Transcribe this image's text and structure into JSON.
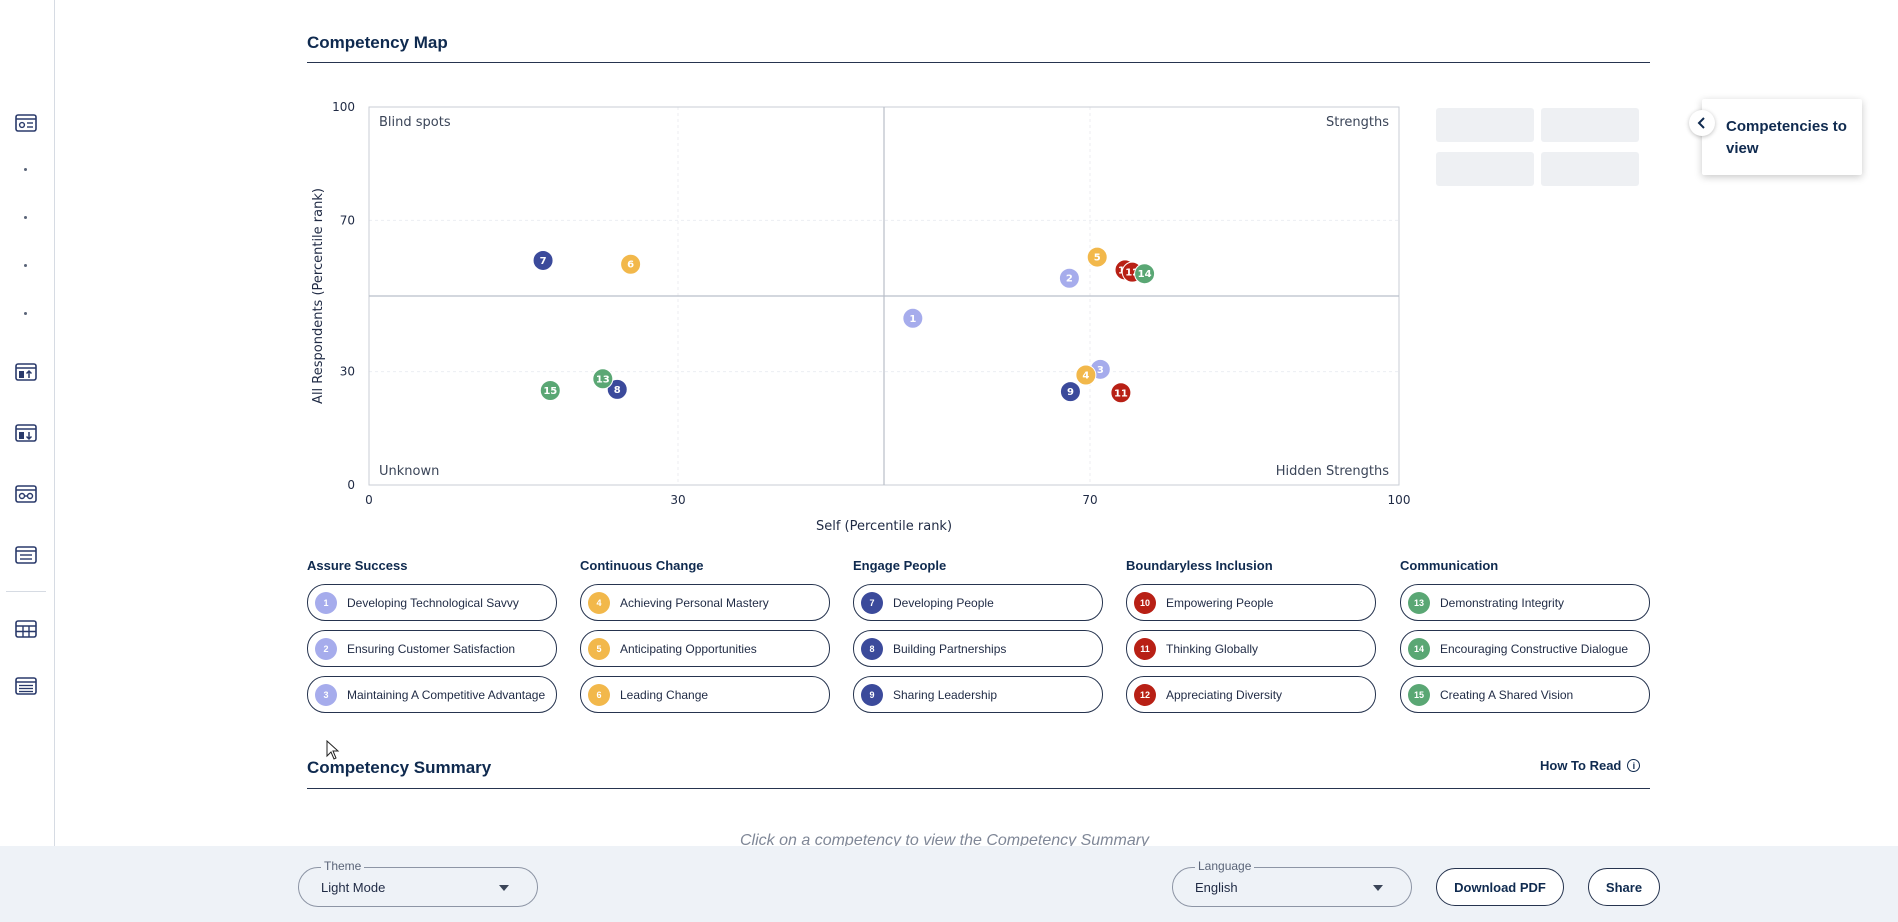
{
  "competency_map": {
    "title": "Competency Map"
  },
  "chart_data": {
    "type": "scatter",
    "xlabel": "Self (Percentile rank)",
    "ylabel": "All Respondents (Percentile rank)",
    "xlim": [
      0,
      100
    ],
    "ylim": [
      0,
      100
    ],
    "x_ticks": [
      0,
      30,
      70,
      100
    ],
    "y_ticks": [
      0,
      30,
      70,
      100
    ],
    "divider": {
      "x": 50,
      "y": 50
    },
    "quadrants": {
      "top_left": "Blind spots",
      "top_right": "Strengths",
      "bottom_left": "Unknown",
      "bottom_right": "Hidden Strengths"
    },
    "points": [
      {
        "id": "1",
        "x": 52.8,
        "y": 44.1,
        "color": "#a6acec"
      },
      {
        "id": "2",
        "x": 68.0,
        "y": 54.7,
        "color": "#a6acec"
      },
      {
        "id": "3",
        "x": 71.0,
        "y": 30.6,
        "color": "#a6acec"
      },
      {
        "id": "4",
        "x": 69.6,
        "y": 29.1,
        "color": "#f2b84b"
      },
      {
        "id": "5",
        "x": 70.7,
        "y": 60.3,
        "color": "#f2b84b"
      },
      {
        "id": "6",
        "x": 25.4,
        "y": 58.4,
        "color": "#f2b84b"
      },
      {
        "id": "7",
        "x": 16.9,
        "y": 59.4,
        "color": "#3b4a9b"
      },
      {
        "id": "8",
        "x": 24.1,
        "y": 25.3,
        "color": "#3b4a9b"
      },
      {
        "id": "9",
        "x": 68.1,
        "y": 24.7,
        "color": "#3b4a9b"
      },
      {
        "id": "10",
        "x": 73.4,
        "y": 56.9,
        "color": "#b82015"
      },
      {
        "id": "11",
        "x": 73.0,
        "y": 24.4,
        "color": "#b82015"
      },
      {
        "id": "12",
        "x": 74.1,
        "y": 56.3,
        "color": "#b82015"
      },
      {
        "id": "13",
        "x": 22.7,
        "y": 28.1,
        "color": "#5aa774"
      },
      {
        "id": "14",
        "x": 75.3,
        "y": 55.9,
        "color": "#5aa774"
      },
      {
        "id": "15",
        "x": 17.6,
        "y": 25.0,
        "color": "#5aa774"
      }
    ]
  },
  "competency_panel": {
    "title": "Competencies to view"
  },
  "legend_groups": [
    {
      "title": "Assure Success",
      "color": "#a6acec",
      "items": [
        {
          "num": "1",
          "label": "Developing Technological Savvy"
        },
        {
          "num": "2",
          "label": "Ensuring Customer Satisfaction"
        },
        {
          "num": "3",
          "label": "Maintaining A Competitive Advantage"
        }
      ]
    },
    {
      "title": "Continuous Change",
      "color": "#f2b84b",
      "items": [
        {
          "num": "4",
          "label": "Achieving Personal Mastery"
        },
        {
          "num": "5",
          "label": "Anticipating Opportunities"
        },
        {
          "num": "6",
          "label": "Leading Change"
        }
      ]
    },
    {
      "title": "Engage People",
      "color": "#3b4a9b",
      "items": [
        {
          "num": "7",
          "label": "Developing People"
        },
        {
          "num": "8",
          "label": "Building Partnerships"
        },
        {
          "num": "9",
          "label": "Sharing Leadership"
        }
      ]
    },
    {
      "title": "Boundaryless Inclusion",
      "color": "#b82015",
      "items": [
        {
          "num": "10",
          "label": "Empowering People"
        },
        {
          "num": "11",
          "label": "Thinking Globally"
        },
        {
          "num": "12",
          "label": "Appreciating Diversity"
        }
      ]
    },
    {
      "title": "Communication",
      "color": "#5aa774",
      "items": [
        {
          "num": "13",
          "label": "Demonstrating Integrity"
        },
        {
          "num": "14",
          "label": "Encouraging Constructive Dialogue"
        },
        {
          "num": "15",
          "label": "Creating A Shared Vision"
        }
      ]
    }
  ],
  "competency_summary": {
    "title": "Competency Summary",
    "how_to_read": "How To Read",
    "hint": "Click on a competency to view the Competency Summary"
  },
  "footer": {
    "theme_label": "Theme",
    "theme_value": "Light Mode",
    "language_label": "Language",
    "language_value": "English",
    "download_label": "Download PDF",
    "share_label": "Share"
  },
  "sidebar_icons": [
    "report-icon",
    "upload-report-icon",
    "download-report-icon",
    "compare-icon",
    "document-icon",
    "table-icon",
    "list-report-icon"
  ]
}
